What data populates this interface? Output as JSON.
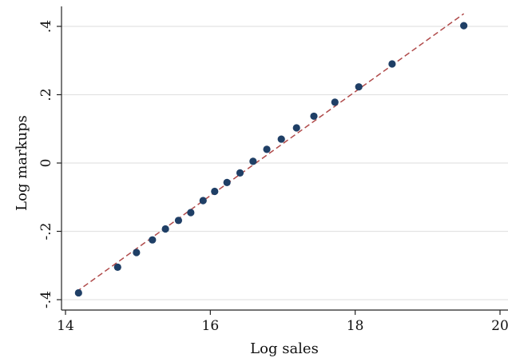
{
  "chart_data": {
    "type": "scatter",
    "xlabel": "Log sales",
    "ylabel": "Log markups",
    "xlim": [
      14,
      20
    ],
    "ylim": [
      -0.4,
      0.4
    ],
    "x_ticks": [
      14,
      16,
      18,
      20
    ],
    "x_tick_labels": [
      "14",
      "16",
      "18",
      "20"
    ],
    "y_ticks": [
      -0.4,
      -0.2,
      0,
      0.2,
      0.4
    ],
    "y_tick_labels": [
      "-.4",
      "-.2",
      "0",
      ".2",
      ".4"
    ],
    "grid": "horizontal",
    "legend": "none",
    "points": {
      "color": "#1f3f66",
      "x": [
        14.18,
        14.72,
        14.98,
        15.2,
        15.38,
        15.56,
        15.73,
        15.9,
        16.06,
        16.23,
        16.41,
        16.59,
        16.78,
        16.98,
        17.19,
        17.43,
        17.72,
        18.05,
        18.51,
        19.5
      ],
      "y": [
        -0.38,
        -0.305,
        -0.262,
        -0.225,
        -0.193,
        -0.168,
        -0.145,
        -0.11,
        -0.083,
        -0.057,
        -0.029,
        0.005,
        0.04,
        0.07,
        0.103,
        0.137,
        0.178,
        0.223,
        0.29,
        0.402
      ]
    },
    "fit_line": {
      "style": "dashed",
      "color": "#b04a4a",
      "x": [
        14.15,
        19.5
      ],
      "y": [
        -0.377,
        0.437
      ]
    }
  }
}
